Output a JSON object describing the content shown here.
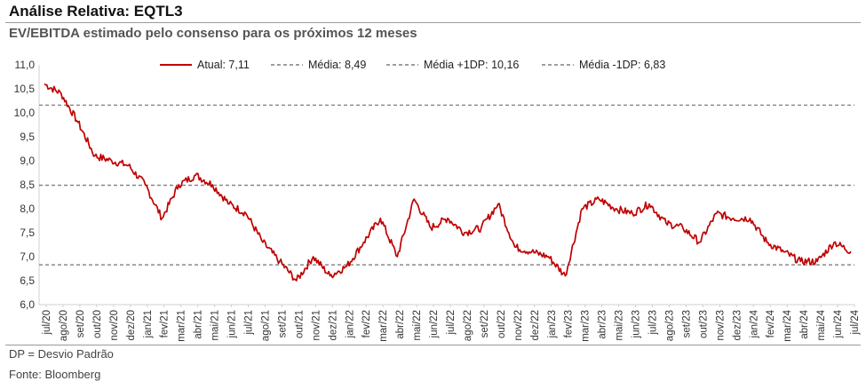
{
  "header": {
    "title": "Análise Relativa: EQTL3",
    "subtitle": "EV/EBITDA estimado pelo consenso para os próximos 12 meses"
  },
  "footer": {
    "note": "DP = Desvio Padrão",
    "source": "Fonte: Bloomberg"
  },
  "chart_data": {
    "type": "line",
    "title": "",
    "xlabel": "",
    "ylabel": "",
    "ylim": [
      6.0,
      11.0
    ],
    "yticks": [
      "6,0",
      "6,5",
      "7,0",
      "7,5",
      "8,0",
      "8,5",
      "9,0",
      "9,5",
      "10,0",
      "10,5",
      "11,0"
    ],
    "xticks": [
      "jul/20",
      "ago/20",
      "set/20",
      "out/20",
      "nov/20",
      "dez/20",
      "jan/21",
      "fev/21",
      "mar/21",
      "abr/21",
      "mai/21",
      "jun/21",
      "jul/21",
      "ago/21",
      "set/21",
      "out/21",
      "nov/21",
      "dez/21",
      "jan/22",
      "fev/22",
      "mar/22",
      "abr/22",
      "mai/22",
      "jun/22",
      "jul/22",
      "ago/22",
      "set/22",
      "out/22",
      "nov/22",
      "dez/22",
      "jan/23",
      "fev/23",
      "mar/23",
      "abr/23",
      "mai/23",
      "jun/23",
      "jul/23",
      "ago/23",
      "set/23",
      "out/23",
      "nov/23",
      "dez/23",
      "jan/24",
      "fev/24",
      "mar/24",
      "abr/24",
      "mai/24",
      "jun/24",
      "jul/24"
    ],
    "grid": false,
    "legend_position": "top",
    "colors": {
      "series": "#c00000",
      "reference": "#7f7f7f"
    },
    "reference_lines": [
      {
        "name": "Média: 8,49",
        "value": 8.49
      },
      {
        "name": "Média +1DP: 10,16",
        "value": 10.16
      },
      {
        "name": "Média -1DP: 6,83",
        "value": 6.83
      }
    ],
    "series": [
      {
        "name": "Atual: 7,11",
        "x": [
          "jul/20",
          "ago/20",
          "set/20",
          "out/20",
          "nov/20",
          "dez/20",
          "jan/21",
          "fev/21",
          "mar/21",
          "abr/21",
          "mai/21",
          "jun/21",
          "jul/21",
          "ago/21",
          "set/21",
          "out/21",
          "nov/21",
          "dez/21",
          "jan/22",
          "fev/22",
          "mar/22",
          "abr/22",
          "mai/22",
          "jun/22",
          "jul/22",
          "ago/22",
          "set/22",
          "out/22",
          "nov/22",
          "dez/22",
          "jan/23",
          "fev/23",
          "mar/23",
          "abr/23",
          "mai/23",
          "jun/23",
          "jul/23",
          "ago/23",
          "set/23",
          "out/23",
          "nov/23",
          "dez/23",
          "jan/24",
          "fev/24",
          "mar/24",
          "abr/24",
          "mai/24",
          "jun/24",
          "jul/24"
        ],
        "values": [
          10.6,
          10.4,
          9.8,
          9.1,
          9.0,
          8.9,
          8.5,
          7.8,
          8.5,
          8.7,
          8.5,
          8.1,
          7.9,
          7.3,
          6.9,
          6.5,
          7.0,
          6.6,
          6.8,
          7.3,
          7.8,
          7.0,
          8.2,
          7.6,
          7.8,
          7.5,
          7.6,
          8.1,
          7.2,
          7.1,
          7.0,
          6.6,
          8.0,
          8.2,
          8.0,
          7.9,
          8.1,
          7.7,
          7.6,
          7.3,
          7.9,
          7.8,
          7.8,
          7.3,
          7.1,
          6.9,
          6.9,
          7.3,
          7.11
        ]
      }
    ]
  }
}
